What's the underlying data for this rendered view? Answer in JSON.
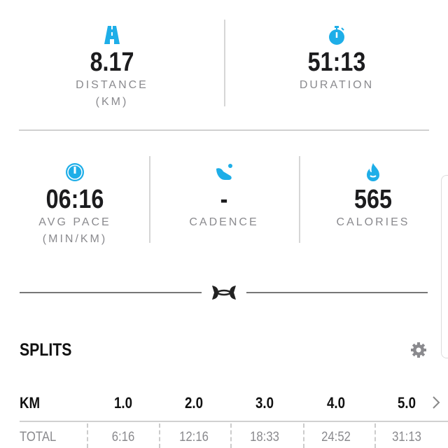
{
  "colors": {
    "accent": "#1eaee8",
    "text": "#1c1c1e",
    "muted": "#8a8a8e"
  },
  "stats": [
    {
      "icon": "road-icon",
      "value": "8.17",
      "label": "DISTANCE",
      "unit": "(KM)"
    },
    {
      "icon": "stopwatch-icon",
      "value": "51:13",
      "label": "DURATION"
    },
    {
      "icon": "speedometer-icon",
      "value": "06:16",
      "label": "AVG PACE",
      "unit": "(MIN/KM)"
    },
    {
      "icon": "shoe-icon",
      "value": "-",
      "label": "CADENCE"
    },
    {
      "icon": "flame-icon",
      "value": "565",
      "label": "CALORIES"
    }
  ],
  "brand_icon": "under-armour-logo-icon",
  "splits": {
    "title": "SPLITS",
    "settings_icon": "gear-icon",
    "header_label": "KM",
    "km": [
      "1.0",
      "2.0",
      "3.0",
      "4.0",
      "5.0"
    ],
    "total_label": "TOTAL",
    "totals": [
      "6:16",
      "12:16",
      "18:33",
      "24:52",
      "31:13"
    ],
    "next_icon": "chevron-right-icon"
  }
}
